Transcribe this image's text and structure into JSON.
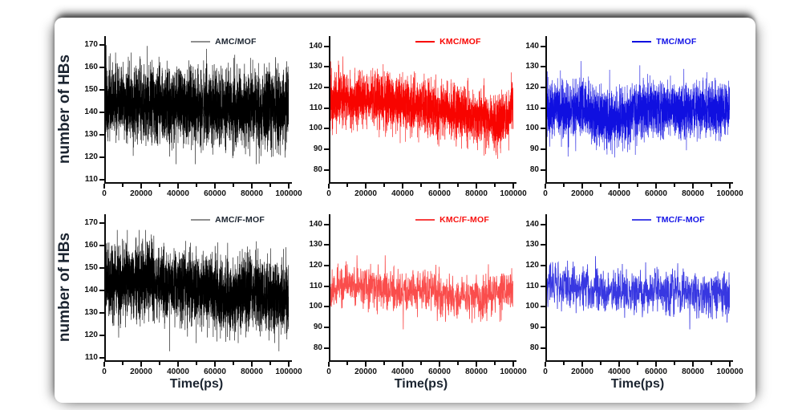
{
  "figure": {
    "y_axis_title": "number of HBs",
    "x_axis_title": "Time(ps)"
  },
  "chart_data": {
    "type": "line",
    "description": "Six-panel molecular dynamics time series of hydrogen-bond counts vs simulation time",
    "xlabel": "Time(ps)",
    "ylabel": "number of HBs",
    "x_range": [
      0,
      100000
    ],
    "x_ticks": [
      0,
      20000,
      40000,
      60000,
      80000,
      100000
    ],
    "x_minor_ticks": [
      10000,
      30000,
      50000,
      70000,
      90000
    ],
    "grid": false,
    "legend_position": "top-center-inside",
    "panels": [
      {
        "legend": "AMC/MOF",
        "color": "#000000",
        "legend_line_color": "#8f8f8f",
        "legend_text_color": "#1b2430",
        "row": 0,
        "col": 0,
        "y_ticks": [
          110,
          120,
          130,
          140,
          150,
          160,
          170
        ],
        "y_axis_range": [
          109,
          174
        ],
        "mean_path": [
          [
            0,
            145
          ],
          [
            20000,
            144
          ],
          [
            60000,
            142
          ],
          [
            100000,
            142
          ]
        ],
        "sigma": 8,
        "clamp": [
          117,
          170
        ],
        "points": 3200,
        "spike_p": 0.025,
        "spike_mag": [
          6,
          14
        ],
        "seed": 101,
        "line_width": 0.6,
        "alpha": 1
      },
      {
        "legend": "KMC/MOF",
        "color": "#f80400",
        "legend_line_color": "#f80400",
        "legend_text_color": "#f80400",
        "row": 0,
        "col": 1,
        "y_ticks": [
          80,
          90,
          100,
          110,
          120,
          130,
          140
        ],
        "y_axis_range": [
          74,
          145
        ],
        "mean_path": [
          [
            0,
            112
          ],
          [
            8000,
            116
          ],
          [
            40000,
            112
          ],
          [
            70000,
            108
          ],
          [
            90000,
            104
          ],
          [
            96000,
            105
          ],
          [
            100000,
            113
          ]
        ],
        "sigma": 6.5,
        "clamp": [
          84,
          137
        ],
        "points": 2800,
        "spike_p": 0.025,
        "spike_mag": [
          5,
          12
        ],
        "seed": 202,
        "line_width": 0.6,
        "alpha": 1
      },
      {
        "legend": "TMC/MOF",
        "color": "#1010e0",
        "legend_line_color": "#1010e0",
        "legend_text_color": "#1212e6",
        "row": 0,
        "col": 2,
        "y_ticks": [
          80,
          90,
          100,
          110,
          120,
          130,
          140
        ],
        "y_axis_range": [
          74,
          145
        ],
        "mean_path": [
          [
            0,
            109
          ],
          [
            20000,
            110
          ],
          [
            33000,
            104
          ],
          [
            42000,
            105
          ],
          [
            52000,
            110
          ],
          [
            75000,
            109
          ],
          [
            100000,
            110
          ]
        ],
        "sigma": 6.5,
        "clamp": [
          86,
          134
        ],
        "points": 2800,
        "spike_p": 0.025,
        "spike_mag": [
          5,
          12
        ],
        "seed": 303,
        "line_width": 0.6,
        "alpha": 1
      },
      {
        "legend": "AMC/F-MOF",
        "color": "#000000",
        "legend_line_color": "#8f8f8f",
        "legend_text_color": "#1b2430",
        "row": 1,
        "col": 0,
        "y_ticks": [
          110,
          120,
          130,
          140,
          150,
          160,
          170
        ],
        "y_axis_range": [
          109,
          174
        ],
        "mean_path": [
          [
            0,
            144
          ],
          [
            30000,
            143
          ],
          [
            55000,
            141
          ],
          [
            68000,
            136
          ],
          [
            78000,
            141
          ],
          [
            100000,
            136
          ]
        ],
        "sigma": 8,
        "clamp": [
          113,
          167
        ],
        "points": 3200,
        "spike_p": 0.025,
        "spike_mag": [
          6,
          13
        ],
        "seed": 404,
        "line_width": 0.6,
        "alpha": 1
      },
      {
        "legend": "KMC/F-MOF",
        "color": "#f81210",
        "legend_line_color": "#f84040",
        "legend_text_color": "#f81210",
        "row": 1,
        "col": 1,
        "y_ticks": [
          80,
          90,
          100,
          110,
          120,
          130,
          140
        ],
        "y_axis_range": [
          74,
          145
        ],
        "mean_path": [
          [
            0,
            104
          ],
          [
            6000,
            111
          ],
          [
            30000,
            108
          ],
          [
            55000,
            107
          ],
          [
            70000,
            104
          ],
          [
            85000,
            106
          ],
          [
            100000,
            107
          ]
        ],
        "sigma": 5,
        "clamp": [
          89,
          125
        ],
        "points": 950,
        "spike_p": 0.02,
        "spike_mag": [
          5,
          11
        ],
        "seed": 505,
        "line_width": 0.85,
        "alpha": 0.75
      },
      {
        "legend": "TMC/F-MOF",
        "color": "#1414dc",
        "legend_line_color": "#4444e8",
        "legend_text_color": "#1212e6",
        "row": 1,
        "col": 2,
        "y_ticks": [
          80,
          90,
          100,
          110,
          120,
          130,
          140
        ],
        "y_axis_range": [
          74,
          145
        ],
        "mean_path": [
          [
            0,
            112
          ],
          [
            15000,
            110
          ],
          [
            35000,
            108
          ],
          [
            60000,
            108
          ],
          [
            80000,
            106
          ],
          [
            100000,
            106
          ]
        ],
        "sigma": 5.2,
        "clamp": [
          89,
          128
        ],
        "points": 950,
        "spike_p": 0.02,
        "spike_mag": [
          5,
          11
        ],
        "seed": 606,
        "line_width": 0.85,
        "alpha": 0.85
      }
    ]
  }
}
